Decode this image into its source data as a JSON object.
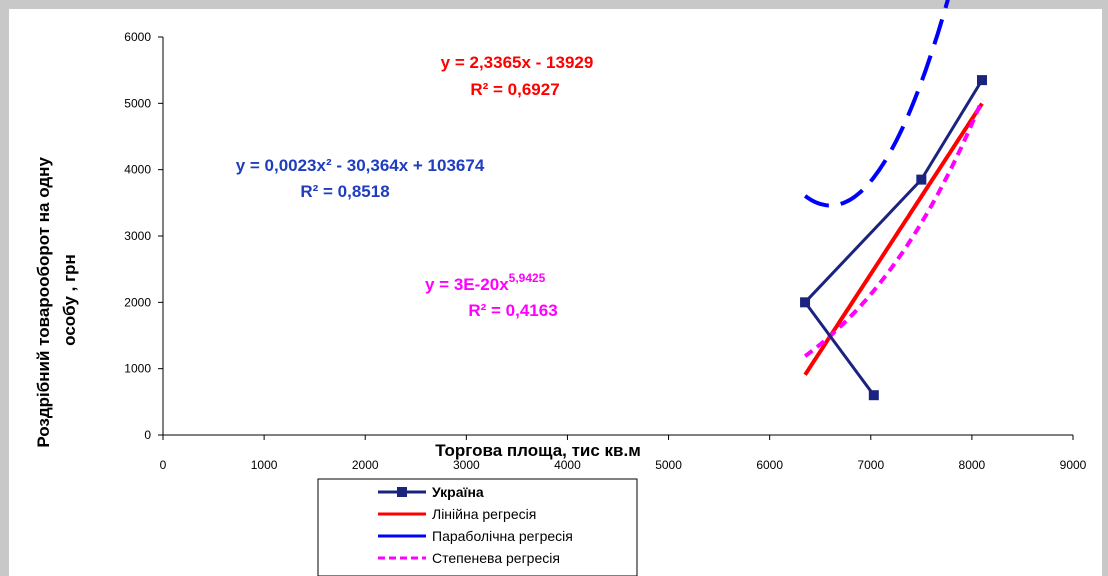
{
  "chart_data": {
    "type": "scatter",
    "title": "",
    "xlabel": "Торгова площа, тис кв.м",
    "ylabel": "Роздрібний товарооборот на одну особу , грн",
    "xlim": [
      0,
      9000
    ],
    "ylim": [
      0,
      6000
    ],
    "x_ticks": [
      "0",
      "1000",
      "2000",
      "3000",
      "4000",
      "5000",
      "6000",
      "7000",
      "8000",
      "9000"
    ],
    "y_ticks": [
      "0",
      "1000",
      "2000",
      "3000",
      "4000",
      "5000",
      "6000"
    ],
    "grid": false,
    "legend_position": "bottom",
    "series": [
      {
        "name": "Україна",
        "color": "#1a237e",
        "style": "line-markers",
        "points": [
          [
            7030,
            600
          ],
          [
            6350,
            2000
          ],
          [
            7500,
            3850
          ],
          [
            8100,
            5350
          ]
        ]
      },
      {
        "name": "Лінійна регресія",
        "color": "#ff0000",
        "style": "solid",
        "equation": "y = 2,3365x - 13929",
        "r2": "R² = 0,6927",
        "model": {
          "kind": "linear",
          "a": 2.3365,
          "b": -13929,
          "xmin": 6350,
          "xmax": 8100
        }
      },
      {
        "name": "Параболічна регресія",
        "color": "#0000ff",
        "style": "long-dash",
        "equation": "y = 0,0023x² - 30,364x + 103674",
        "r2": "R² = 0,8518",
        "model": {
          "kind": "quadratic",
          "a": 0.0023,
          "b": -30.364,
          "c": 103674,
          "xmin": 6350,
          "xmax": 8100
        }
      },
      {
        "name": "Степенева регресія",
        "color": "#ff00ff",
        "style": "short-dash",
        "equation_base": "y = 3E-20x",
        "equation_exponent": "5,9425",
        "r2": "R² = 0,4163",
        "model": {
          "kind": "power",
          "a": 3e-20,
          "b": 5.9425,
          "xmin": 6350,
          "xmax": 8100
        }
      }
    ]
  }
}
